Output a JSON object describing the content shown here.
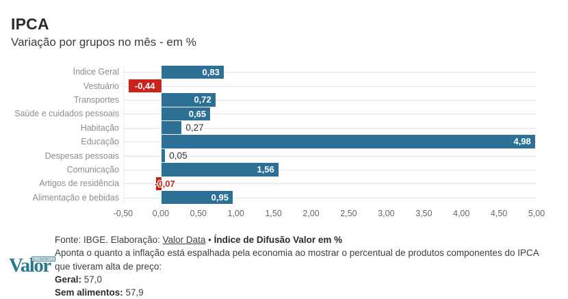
{
  "header": {
    "title": "IPCA",
    "subtitle": "Variação por grupos no mês - em %"
  },
  "chart_data": {
    "type": "bar",
    "orientation": "horizontal",
    "title": "IPCA",
    "subtitle": "Variação por grupos no mês - em %",
    "categories": [
      "Índice Geral",
      "Vestuário",
      "Transportes",
      "Saúde e cuidados pessoais",
      "Habitação",
      "Educação",
      "Despesas pessoais",
      "Comunicação",
      "Artigos de residência",
      "Alimentação e bebidas"
    ],
    "values": [
      0.83,
      -0.44,
      0.72,
      0.65,
      0.27,
      4.98,
      0.05,
      1.56,
      -0.07,
      0.95
    ],
    "value_labels": [
      "0,83",
      "-0,44",
      "0,72",
      "0,65",
      "0,27",
      "4,98",
      "0,05",
      "1,56",
      "-0,07",
      "0,95"
    ],
    "xlim": [
      -0.5,
      5.0
    ],
    "x_ticks": [
      "-0,50",
      "0,00",
      "0,50",
      "1,00",
      "1,50",
      "2,00",
      "2,50",
      "3,00",
      "3,50",
      "4,00",
      "4,50",
      "5,00"
    ],
    "x_tick_values": [
      -0.5,
      0,
      0.5,
      1,
      1.5,
      2,
      2.5,
      3,
      3.5,
      4,
      4.5,
      5
    ],
    "grid": "horizontal-category-lines",
    "legend": "none",
    "colors": {
      "bar_positive": "#2d7096",
      "bar_negative": "#c9241c",
      "gridline": "#e3e3e3",
      "category_label": "#8c8c8c",
      "tick_label": "#666666",
      "value_inside": "#ffffff",
      "value_outside": "#333333"
    }
  },
  "footer": {
    "fonte_prefix": "Fonte: IBGE. Elaboração: ",
    "fonte_link": "Valor Data",
    "fonte_sep": " • ",
    "fonte_bold": "Índice de Difusão Valor em %",
    "description": "Aponta o quanto a inflação está espalhada pela economia ao mostrar o percentual de produtos componentes do IPCA que tiveram alta de preço:",
    "geral_label": "Geral:",
    "geral_value": " 57,0",
    "sem_label": "Sem alimentos:",
    "sem_value": " 57,9",
    "logo_text": "Valor",
    "logo_small": "ECONÔMICO"
  }
}
